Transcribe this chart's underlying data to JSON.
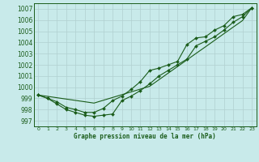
{
  "title": "Graphe pression niveau de la mer (hPa)",
  "background_color": "#c8eaea",
  "grid_color": "#b0d0d0",
  "line_color": "#1a5c1a",
  "xlim": [
    -0.5,
    23.5
  ],
  "ylim": [
    996.5,
    1007.5
  ],
  "yticks": [
    997,
    998,
    999,
    1000,
    1001,
    1002,
    1003,
    1004,
    1005,
    1006,
    1007
  ],
  "xticks": [
    0,
    1,
    2,
    3,
    4,
    5,
    6,
    7,
    8,
    9,
    10,
    11,
    12,
    13,
    14,
    15,
    16,
    17,
    18,
    19,
    20,
    21,
    22,
    23
  ],
  "hours": [
    0,
    1,
    2,
    3,
    4,
    5,
    6,
    7,
    8,
    9,
    10,
    11,
    12,
    13,
    14,
    15,
    16,
    17,
    18,
    19,
    20,
    21,
    22,
    23
  ],
  "line_straight": [
    999.3,
    999.18,
    999.06,
    998.94,
    998.82,
    998.7,
    998.58,
    998.83,
    999.08,
    999.33,
    999.58,
    999.83,
    1000.08,
    1000.67,
    1001.26,
    1001.84,
    1002.43,
    1003.02,
    1003.6,
    1004.19,
    1004.78,
    1005.37,
    1005.95,
    1007.1
  ],
  "line_upper": [
    999.3,
    999.0,
    998.7,
    998.2,
    998.0,
    997.75,
    997.75,
    998.1,
    998.8,
    999.2,
    999.8,
    1000.5,
    1001.5,
    1001.7,
    1002.0,
    1002.3,
    1003.8,
    1004.4,
    1004.5,
    1005.1,
    1005.5,
    1006.3,
    1006.5,
    1007.1
  ],
  "line_lower": [
    999.3,
    999.0,
    998.5,
    998.0,
    997.75,
    997.5,
    997.4,
    997.5,
    997.6,
    998.8,
    999.2,
    999.7,
    1000.3,
    1001.0,
    1001.5,
    1002.0,
    1002.5,
    1003.7,
    1004.1,
    1004.5,
    1005.1,
    1005.8,
    1006.3,
    1007.1
  ]
}
